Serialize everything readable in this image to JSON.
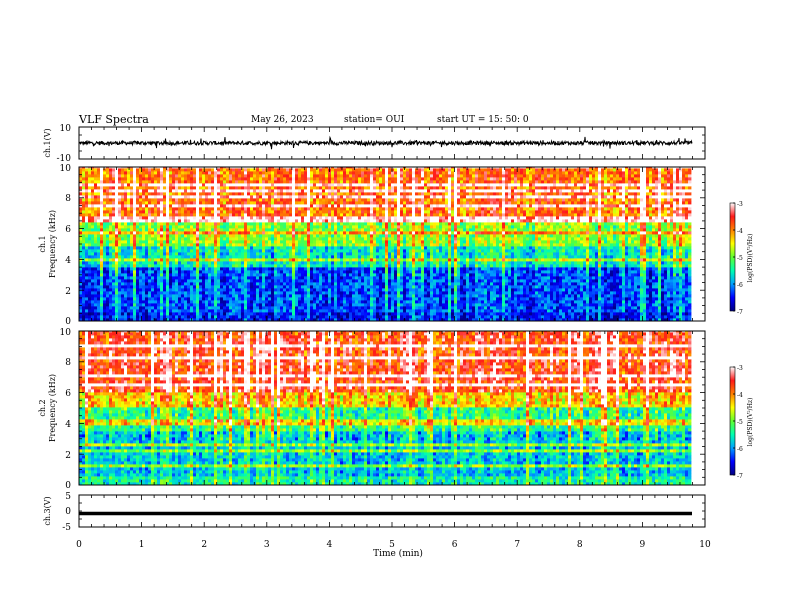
{
  "header": {
    "title": "VLF Spectra",
    "date": "May 26, 2023",
    "station": "station= OUI",
    "start_ut": "start  UT =   15: 50: 0"
  },
  "chart_data": [
    {
      "type": "line",
      "name": "ch1-waveform",
      "ylabel": "ch.1(V)",
      "ylim": [
        -10,
        10
      ],
      "yticks": [
        10,
        -10
      ],
      "xlim": [
        0,
        10
      ],
      "color": "#000000",
      "description_level": "baseline approximately 0 V with short spikes up to about +/-4 V"
    },
    {
      "type": "heatmap",
      "name": "ch1-spectrogram",
      "ylabel_top": "ch.1",
      "ylabel": "Frequency (kHz)",
      "ylim": [
        0,
        10
      ],
      "yticks": [
        0,
        2,
        4,
        6,
        8,
        10
      ],
      "xlim": [
        0,
        10
      ],
      "data_end_min": 9.8,
      "colorbar": {
        "label": "log(PSD)(V²/Hz)",
        "range": [
          -7,
          -3
        ],
        "ticks": [
          -3,
          -4,
          -5,
          -6,
          -7
        ]
      },
      "band_profile": [
        {
          "freq_khz": [
            0,
            0.5
          ],
          "log_psd": -6.5
        },
        {
          "freq_khz": [
            0.5,
            3.5
          ],
          "log_psd": -6.3
        },
        {
          "freq_khz": [
            3.5,
            4.8
          ],
          "log_psd": -5.6
        },
        {
          "freq_khz": [
            4.8,
            6.5
          ],
          "log_psd": -4.9
        },
        {
          "freq_khz": [
            6.5,
            10
          ],
          "log_psd": -3.9
        }
      ]
    },
    {
      "type": "heatmap",
      "name": "ch2-spectrogram",
      "ylabel_top": "ch.2",
      "ylabel": "Frequency (kHz)",
      "ylim": [
        0,
        10
      ],
      "yticks": [
        0,
        2,
        4,
        6,
        8,
        10
      ],
      "xlim": [
        0,
        10
      ],
      "data_end_min": 9.8,
      "colorbar": {
        "label": "log(PSD)(V²/Hz)",
        "range": [
          -7,
          -3
        ],
        "ticks": [
          -3,
          -4,
          -5,
          -6,
          -7
        ]
      },
      "band_profile": [
        {
          "freq_khz": [
            0,
            0.5
          ],
          "log_psd": -5.5
        },
        {
          "freq_khz": [
            0.5,
            3.5
          ],
          "log_psd": -5.8
        },
        {
          "freq_khz": [
            3.5,
            5.0
          ],
          "log_psd": -5.3
        },
        {
          "freq_khz": [
            5.0,
            6.0
          ],
          "log_psd": -4.3
        },
        {
          "freq_khz": [
            6.0,
            10
          ],
          "log_psd": -3.6
        }
      ]
    },
    {
      "type": "line",
      "name": "ch3-waveform",
      "ylabel": "ch.3(V)",
      "ylim": [
        -5,
        5
      ],
      "yticks": [
        5,
        0,
        -5
      ],
      "xlim": [
        0,
        10
      ],
      "color": "#000000",
      "level_v": -0.8
    }
  ],
  "xaxis": {
    "label": "Time (min)",
    "range": [
      0,
      10
    ],
    "ticks": [
      "0",
      "1",
      "2",
      "3",
      "4",
      "5",
      "6",
      "7",
      "8",
      "9",
      "10"
    ]
  },
  "colormap": [
    "#000080",
    "#0000ff",
    "#00a0ff",
    "#00ffb0",
    "#60ff30",
    "#ffff00",
    "#ff8000",
    "#ff1a1a",
    "#ffffff"
  ]
}
